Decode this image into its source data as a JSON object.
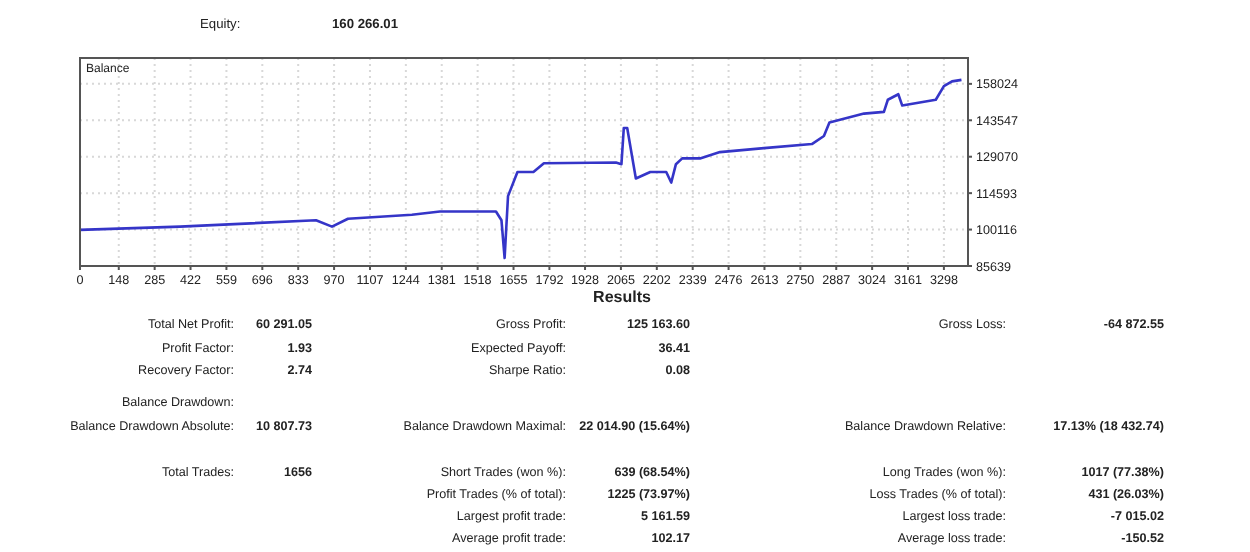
{
  "chart_data": [
    {
      "type": "other",
      "annotations": [
        "Equity:",
        "160 266.01"
      ]
    },
    {
      "type": "line",
      "title": "Balance",
      "xlim": [
        0,
        3390
      ],
      "ylim": [
        85639,
        168300
      ],
      "xticks": [
        0,
        148,
        285,
        422,
        559,
        696,
        833,
        970,
        1107,
        1244,
        1381,
        1518,
        1655,
        1792,
        1928,
        2065,
        2202,
        2339,
        2476,
        2613,
        2750,
        2887,
        3024,
        3161,
        3298
      ],
      "yticks": [
        85639,
        100116,
        114593,
        129070,
        143547,
        158024
      ],
      "grid": true,
      "x": [
        0,
        382,
        901,
        962,
        1023,
        1267,
        1374,
        1588,
        1609,
        1621,
        1634,
        1670,
        1731,
        1771,
        2046,
        2067,
        2076,
        2089,
        2122,
        2177,
        2238,
        2257,
        2275,
        2299,
        2367,
        2443,
        2611,
        2794,
        2840,
        2861,
        2993,
        3069,
        3084,
        3124,
        3139,
        3267,
        3298,
        3329,
        3365
      ],
      "series": [
        {
          "color": "#3535c8",
          "values": [
            100000,
            101300,
            103800,
            101300,
            104400,
            106000,
            107300,
            107300,
            103800,
            88800,
            113400,
            123000,
            123000,
            126500,
            126800,
            126100,
            140500,
            140500,
            120400,
            123000,
            123000,
            118800,
            126100,
            128400,
            128400,
            130900,
            132500,
            134100,
            137300,
            142700,
            146200,
            146900,
            151700,
            153900,
            149400,
            151700,
            157100,
            159000,
            159600
          ]
        }
      ]
    },
    {
      "type": "other",
      "title": "Results",
      "annotations": [
        "Total Net Profit:",
        "60 291.05",
        "Gross Profit:",
        "125 163.60",
        "Gross Loss:",
        "-64 872.55",
        "Profit Factor:",
        "1.93",
        "Expected Payoff:",
        "36.41",
        "Recovery Factor:",
        "2.74",
        "Sharpe Ratio:",
        "0.08",
        "Balance Drawdown:",
        "Balance Drawdown Absolute:",
        "10 807.73",
        "Balance Drawdown Maximal:",
        "22 014.90 (15.64%)",
        "Balance Drawdown Relative:",
        "17.13% (18 432.74)",
        "Total Trades:",
        "1656",
        "Short Trades (won %):",
        "639 (68.54%)",
        "Long Trades (won %):",
        "1017 (77.38%)",
        "Profit Trades (% of total):",
        "1225 (73.97%)",
        "Loss Trades (% of total):",
        "431 (26.03%)",
        "Largest profit trade:",
        "5 161.59",
        "Largest loss trade:",
        "-7 015.02",
        "Average profit trade:",
        "102.17",
        "Average loss trade:",
        "-150.52"
      ]
    }
  ]
}
